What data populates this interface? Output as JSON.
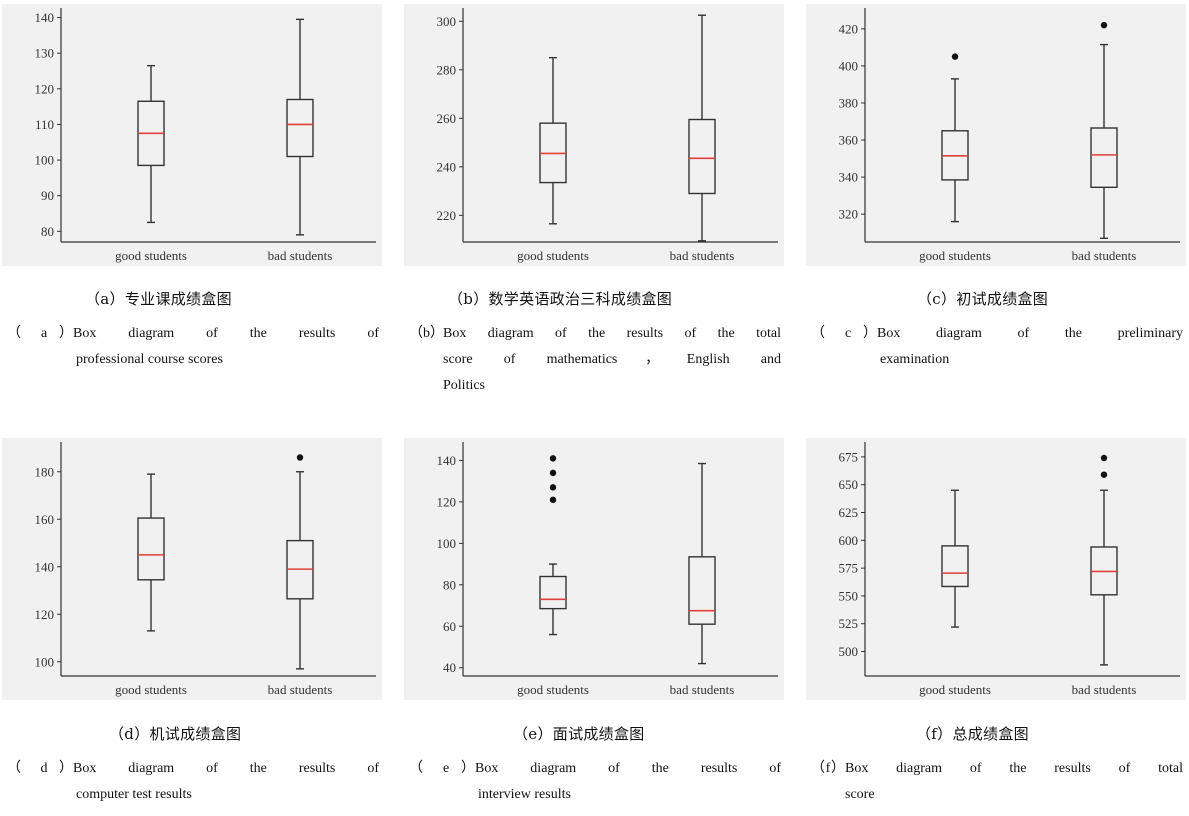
{
  "chart_data": [
    {
      "type": "box",
      "categories": [
        "good students",
        "bad students"
      ],
      "ylim": [
        77,
        141
      ],
      "yticks": [
        80,
        90,
        100,
        110,
        120,
        130,
        140
      ],
      "boxes": [
        {
          "whislo": 82.5,
          "q1": 98.5,
          "med": 107.5,
          "q3": 116.5,
          "whishi": 126.5,
          "fliers": []
        },
        {
          "whislo": 79.0,
          "q1": 101.0,
          "med": 110.0,
          "q3": 117.0,
          "whishi": 139.5,
          "fliers": []
        }
      ],
      "caption_cn": "（a）专业课成绩盒图",
      "caption_en_label": "（ a ）",
      "caption_en_line1": "Box diagram of the results of",
      "caption_en_line2": "professional course scores",
      "caption_en_line3": ""
    },
    {
      "type": "box",
      "categories": [
        "good students",
        "bad students"
      ],
      "ylim": [
        209,
        303
      ],
      "yticks": [
        220,
        240,
        260,
        280,
        300
      ],
      "boxes": [
        {
          "whislo": 216.5,
          "q1": 233.5,
          "med": 245.5,
          "q3": 258,
          "whishi": 285,
          "fliers": []
        },
        {
          "whislo": 209.5,
          "q1": 229,
          "med": 243.5,
          "q3": 259.5,
          "whishi": 302.5,
          "fliers": []
        }
      ],
      "caption_cn": "（b）数学英语政治三科成绩盒图",
      "caption_en_label": "（b）",
      "caption_en_line1": "Box diagram of the results of the total",
      "caption_en_line2": "score of mathematics，English and",
      "caption_en_line3": "Politics"
    },
    {
      "type": "box",
      "categories": [
        "good students",
        "bad students"
      ],
      "ylim": [
        305,
        428
      ],
      "yticks": [
        320,
        340,
        360,
        380,
        400,
        420
      ],
      "boxes": [
        {
          "whislo": 316,
          "q1": 338.5,
          "med": 351.5,
          "q3": 365,
          "whishi": 393,
          "fliers": [
            405
          ]
        },
        {
          "whislo": 307,
          "q1": 334.5,
          "med": 352,
          "q3": 366.5,
          "whishi": 411.5,
          "fliers": [
            422
          ]
        }
      ],
      "caption_cn": "（c）初试成绩盒图",
      "caption_en_label": "（ c ）",
      "caption_en_line1": "Box diagram of the preliminary",
      "caption_en_line2": "examination",
      "caption_en_line3": ""
    },
    {
      "type": "box",
      "categories": [
        "good students",
        "bad students"
      ],
      "ylim": [
        94,
        190
      ],
      "yticks": [
        100,
        120,
        140,
        160,
        180
      ],
      "boxes": [
        {
          "whislo": 113,
          "q1": 134.5,
          "med": 145,
          "q3": 160.5,
          "whishi": 179,
          "fliers": []
        },
        {
          "whislo": 97,
          "q1": 126.5,
          "med": 139,
          "q3": 151,
          "whishi": 180,
          "fliers": [
            186
          ]
        }
      ],
      "caption_cn": "（d）机试成绩盒图",
      "caption_en_label": "（ d ）",
      "caption_en_line1": "Box diagram of the results of",
      "caption_en_line2": "computer test results",
      "caption_en_line3": ""
    },
    {
      "type": "box",
      "categories": [
        "good students",
        "bad students"
      ],
      "ylim": [
        36,
        146
      ],
      "yticks": [
        40,
        60,
        80,
        100,
        120,
        140
      ],
      "boxes": [
        {
          "whislo": 56,
          "q1": 68.5,
          "med": 73,
          "q3": 84,
          "whishi": 90,
          "fliers": [
            121,
            127,
            134,
            141
          ]
        },
        {
          "whislo": 42,
          "q1": 61,
          "med": 67.5,
          "q3": 93.5,
          "whishi": 138.5,
          "fliers": []
        }
      ],
      "caption_cn": "（e）面试成绩盒图",
      "caption_en_label": "（ e ）",
      "caption_en_line1": "Box diagram of the results of",
      "caption_en_line2": "interview results",
      "caption_en_line3": ""
    },
    {
      "type": "box",
      "categories": [
        "good students",
        "bad students"
      ],
      "ylim": [
        478,
        683
      ],
      "yticks": [
        500,
        525,
        550,
        575,
        600,
        625,
        650,
        675
      ],
      "boxes": [
        {
          "whislo": 522,
          "q1": 558.5,
          "med": 570.5,
          "q3": 595,
          "whishi": 645,
          "fliers": []
        },
        {
          "whislo": 488,
          "q1": 551,
          "med": 572,
          "q3": 594,
          "whishi": 645,
          "fliers": [
            659,
            674
          ]
        }
      ],
      "caption_cn": "（f）总成绩盒图",
      "caption_en_label": "（f）",
      "caption_en_line1": "Box diagram of the results of total",
      "caption_en_line2": "score",
      "caption_en_line3": ""
    }
  ],
  "colors": {
    "background": "#f1f1f1",
    "axis": "#333333",
    "box": "#333333",
    "median": "#e0403a",
    "flier": "#111111"
  }
}
